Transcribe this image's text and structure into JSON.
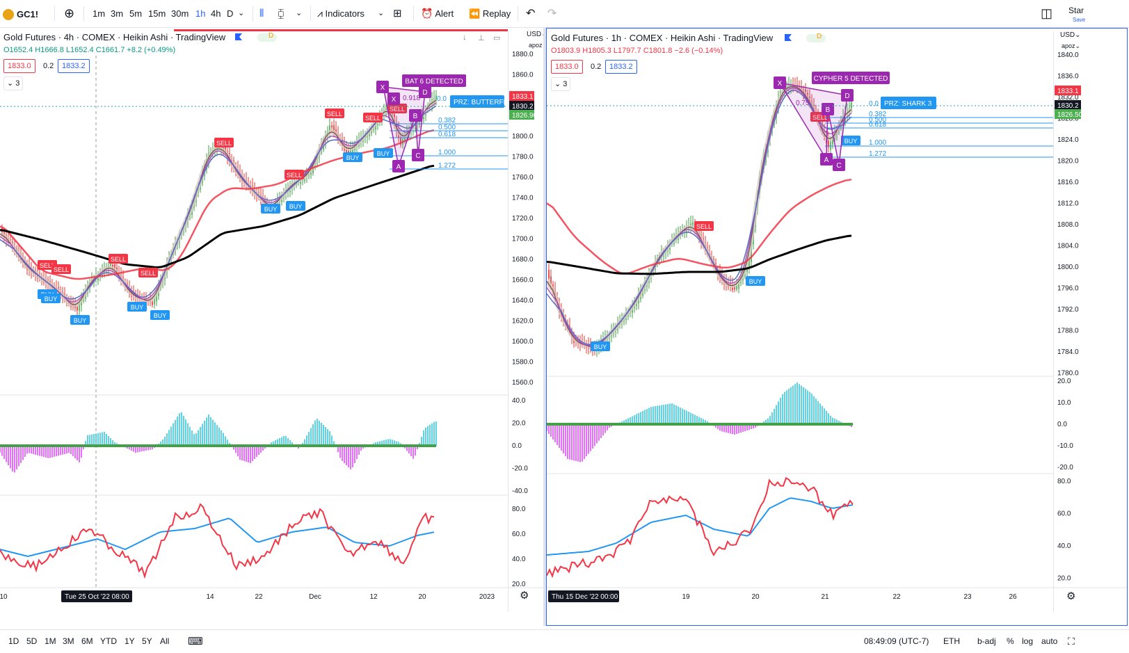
{
  "toolbar": {
    "symbol": "GC1!",
    "intervals": [
      "1m",
      "3m",
      "5m",
      "15m",
      "30m",
      "1h",
      "4h",
      "D"
    ],
    "active_interval": "1h",
    "indicators": "Indicators",
    "alert": "Alert",
    "replay": "Replay",
    "star": "Star",
    "save": "Save"
  },
  "left": {
    "title": "Gold Futures · 4h · COMEX · Heikin Ashi · TradingView",
    "ohlc": {
      "o": "O1652.4",
      "h": "H1666.8",
      "l": "L1652.4",
      "c": "C1661.7",
      "chg": "+8.2 (+0.49%)"
    },
    "sell_price": "1833.0",
    "spread": "0.2",
    "buy_price": "1833.2",
    "visibility": "3",
    "currency": "USD",
    "scale_user": "apoz",
    "price_ticks": [
      "1880.0",
      "1860.0",
      "1840.0",
      "1820.0",
      "1800.0",
      "1780.0",
      "1760.0",
      "1740.0",
      "1720.0",
      "1700.0",
      "1680.0",
      "1660.0",
      "1640.0",
      "1620.0",
      "1600.0",
      "1580.0",
      "1560.0"
    ],
    "osc1_ticks": [
      "40.0",
      "20.0",
      "0.0",
      "-20.0",
      "-40.0"
    ],
    "osc2_ticks": [
      "80.0",
      "60.0",
      "40.0",
      "20.0"
    ],
    "time_labels": [
      "10",
      "14",
      "22",
      "Dec",
      "12",
      "20",
      "2023"
    ],
    "time_label_partial": "ov",
    "crosshair_date": "Tue 25 Oct '22   08:00",
    "badges": {
      "red": "1833.1",
      "dark": "1830.2",
      "green": "1826.90"
    },
    "pattern": "BAT 6 DETECTED",
    "prz": "PRZ: BUTTERFL",
    "fib_levels": [
      "0.382",
      "0.500",
      "0.618",
      "1.000",
      "1.272"
    ],
    "fib_top": "0.0",
    "fib_mid": "0.918",
    "points": {
      "x": "X",
      "a": "A",
      "b": "B",
      "c": "C",
      "d": "D"
    },
    "circles": {
      "a": "a",
      "b": "b",
      "c": "c"
    }
  },
  "right": {
    "title": "Gold Futures · 1h · COMEX · Heikin Ashi · TradingView",
    "ohlc": {
      "o": "O1803.9",
      "h": "H1805.3",
      "l": "L1797.7",
      "c": "C1801.8",
      "chg": "−2.6 (−0.14%)"
    },
    "sell_price": "1833.0",
    "spread": "0.2",
    "buy_price": "1833.2",
    "visibility": "3",
    "currency": "USD",
    "scale_user": "apoz",
    "price_ticks": [
      "1840.0",
      "1836.0",
      "1832.0",
      "1828.0",
      "1824.0",
      "1820.0",
      "1816.0",
      "1812.0",
      "1808.0",
      "1804.0",
      "1800.0",
      "1796.0",
      "1792.0",
      "1788.0",
      "1784.0",
      "1780.0"
    ],
    "osc1_ticks": [
      "20.0",
      "10.0",
      "0.0",
      "-10.0",
      "-20.0"
    ],
    "osc2_ticks": [
      "80.0",
      "60.0",
      "40.0",
      "20.0"
    ],
    "time_labels": [
      "19",
      "20",
      "21",
      "22",
      "23",
      "26"
    ],
    "crosshair_date": "Thu 15 Dec '22   00:00",
    "badges": {
      "red": "1833.1",
      "dark": "1830.2",
      "green": "1826.50"
    },
    "pattern": "CYPHER 5 DETECTED",
    "prz": "PRZ: SHARK 3",
    "fib_levels": [
      "0.382",
      "0.500",
      "0.618",
      "1.000",
      "1.272"
    ],
    "fib_top": "0.0",
    "fib_mid": "0.75"
  },
  "signals": {
    "buy": "BUY",
    "sell": "SELL"
  },
  "bottom": {
    "ranges": [
      "1D",
      "5D",
      "1M",
      "3M",
      "6M",
      "YTD",
      "1Y",
      "5Y",
      "All"
    ],
    "time": "08:49:09 (UTC-7)",
    "session": "ETH",
    "badj": "b-adj",
    "pct": "%",
    "log": "log",
    "auto": "auto"
  },
  "colors": {
    "buy": "#2196f3",
    "sell": "#f23645",
    "pattern": "#9c27b0",
    "ema_black": "#000000",
    "ema_red": "#f23645",
    "hist_pos": "#26c6da",
    "hist_neg": "#e040fb"
  }
}
